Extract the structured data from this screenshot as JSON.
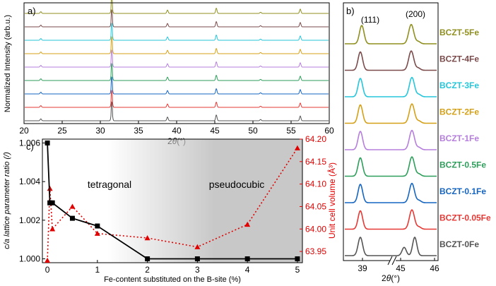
{
  "chart_data": [
    {
      "type": "line",
      "panel_label": "a)",
      "xlabel_prefix": "2",
      "xlabel_theta": "θ",
      "xlabel_unit": "(°)",
      "ylabel": "Normalized Intensity (arb.u.)",
      "xlim": [
        20,
        60
      ],
      "xticks": [
        "20",
        "25",
        "30",
        "35",
        "40",
        "45",
        "50",
        "55",
        "60"
      ],
      "peaks_2theta": [
        22.2,
        31.5,
        38.8,
        45.2,
        51.0,
        56.2
      ],
      "peak_rel_heights": [
        0.18,
        1.0,
        0.35,
        0.55,
        0.12,
        0.45
      ],
      "series": [
        {
          "name": "BCZT-0Fe",
          "color": "#555555"
        },
        {
          "name": "BCZT-0.05Fe",
          "color": "#e53935"
        },
        {
          "name": "BCZT-0.1Fe",
          "color": "#1565c0"
        },
        {
          "name": "BCZT-0.5Fe",
          "color": "#2e9e5b"
        },
        {
          "name": "BCZT-1Fe",
          "color": "#b57edc"
        },
        {
          "name": "BCZT-2Fe",
          "color": "#d4a017"
        },
        {
          "name": "BCZT-3Fe",
          "color": "#26c6da"
        },
        {
          "name": "BCZT-4Fe",
          "color": "#7b4a4a"
        },
        {
          "name": "BCZT-5Fe",
          "color": "#8f8f1f"
        }
      ]
    },
    {
      "type": "line",
      "panel_label": "b)",
      "xlabel_prefix": "2",
      "xlabel_theta": "θ",
      "xlabel_unit": "(°)",
      "xticks": [
        "39",
        "45",
        "46"
      ],
      "peak_labels": [
        "(111)",
        "(200)"
      ],
      "series_labels": [
        "BCZT-5Fe",
        "BCZT-4Fe",
        "BCZT-3Fe",
        "BCZT-2Fe",
        "BCZT-1Fe",
        "BCZT-0.5Fe",
        "BCZT-0.1Fe",
        "BCZT-0.05Fe",
        "BCZT-0Fe"
      ],
      "series_colors": [
        "#8f8f1f",
        "#7b4a4a",
        "#26c6da",
        "#d4a017",
        "#b57edc",
        "#2e9e5b",
        "#1565c0",
        "#e53935",
        "#555555"
      ]
    },
    {
      "type": "line",
      "panel_label": "c)",
      "xlabel": "Fe-content substituted on the B-site (%)",
      "ylabel_left": "c/a lattice parameter ratio (/)",
      "ylabel_right": "Unit cell volume (Å³)",
      "xlim": [
        -0.1,
        5.1
      ],
      "ylim_left": [
        0.9998,
        1.0062
      ],
      "ylim_right": [
        63.925,
        64.2
      ],
      "xticks": [
        "0",
        "1",
        "2",
        "3",
        "4",
        "5"
      ],
      "yticks_left": [
        "1.000",
        "1.002",
        "1.004",
        "1.006"
      ],
      "yticks_right": [
        "63.95",
        "64.00",
        "64.05",
        "64.10",
        "64.15",
        "64.20"
      ],
      "region_labels": [
        "tetragonal",
        "pseudocubic"
      ],
      "series": [
        {
          "name": "c/a ratio",
          "color": "#000000",
          "x": [
            0,
            0.05,
            0.1,
            0.5,
            1,
            2,
            3,
            4,
            5
          ],
          "y": [
            1.006,
            1.0029,
            1.0029,
            1.0021,
            1.0017,
            1.0,
            1.0,
            1.0,
            1.0
          ]
        },
        {
          "name": "Unit cell volume",
          "color": "#e00000",
          "x": [
            0,
            0.05,
            0.1,
            0.5,
            1,
            2,
            3,
            4,
            5
          ],
          "y": [
            63.93,
            64.09,
            64.0,
            64.05,
            63.99,
            63.98,
            63.96,
            64.01,
            64.18
          ]
        }
      ]
    }
  ]
}
